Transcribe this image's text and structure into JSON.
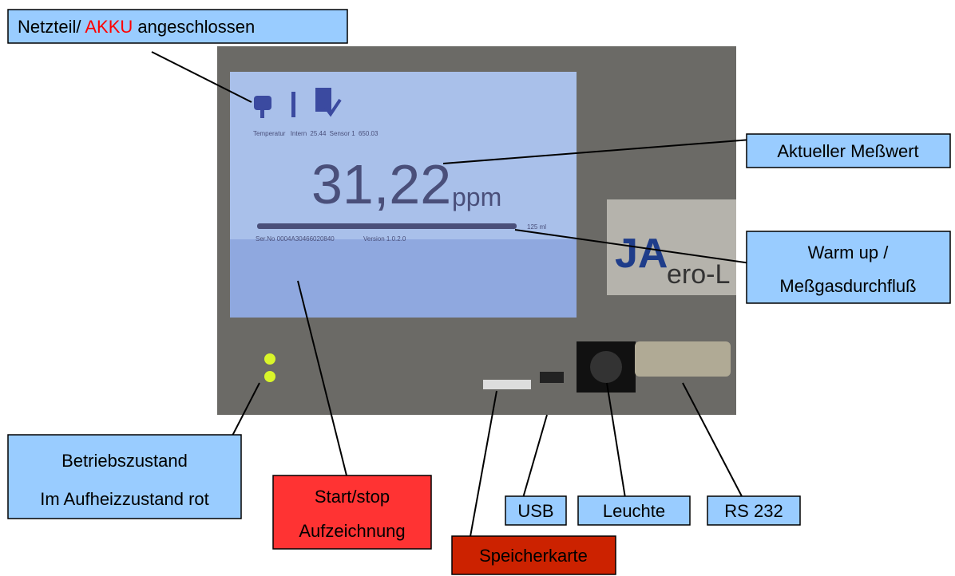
{
  "callouts": {
    "power": {
      "parts": [
        "Netzteil/ ",
        "AKKU",
        " angeschlossen"
      ]
    },
    "value": {
      "label": "Aktueller Meßwert"
    },
    "flow": {
      "lines": [
        "Warm up /",
        "Meßgasdurchfluß"
      ]
    },
    "status": {
      "lines": [
        "Betriebszustand",
        "Im Aufheizzustand rot"
      ]
    },
    "record": {
      "lines": [
        "Start/stop",
        "Aufzeichnung"
      ]
    },
    "usb": {
      "label": "USB"
    },
    "light": {
      "label": "Leuchte"
    },
    "serial": {
      "label": "RS 232"
    },
    "card": {
      "label": "Speicherkarte"
    }
  },
  "screen": {
    "status_items": [
      "Temperatur",
      "Intern",
      "25.44",
      "Sensor 1",
      "650.03"
    ],
    "reading": "31,22",
    "unit": "ppm",
    "flow": "125 ml",
    "serial": "Ser.No 0004A30466020840",
    "version": "Version 1.0.2.0"
  },
  "logo": "ero-L"
}
